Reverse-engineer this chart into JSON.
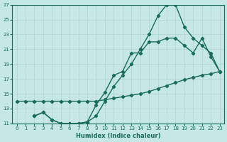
{
  "xlabel": "Humidex (Indice chaleur)",
  "xlim": [
    -0.5,
    23.5
  ],
  "ylim": [
    11,
    27
  ],
  "xticks": [
    0,
    1,
    2,
    3,
    4,
    5,
    6,
    7,
    8,
    9,
    10,
    11,
    12,
    13,
    14,
    15,
    16,
    17,
    18,
    19,
    20,
    21,
    22,
    23
  ],
  "yticks": [
    11,
    13,
    15,
    17,
    19,
    21,
    23,
    25,
    27
  ],
  "bg_color": "#c5e8e5",
  "line_color": "#1a6b5a",
  "grid_color": "#b8d8d4",
  "line1_x": [
    0,
    1,
    2,
    3,
    4,
    5,
    6,
    7,
    8,
    9,
    10,
    11,
    12,
    13,
    14,
    15,
    16,
    17,
    18,
    19,
    20,
    21,
    22,
    23
  ],
  "line1_y": [
    14.0,
    14.0,
    14.0,
    14.0,
    14.0,
    14.0,
    14.0,
    14.0,
    14.0,
    14.0,
    14.2,
    14.4,
    14.6,
    14.8,
    15.0,
    15.3,
    15.7,
    16.1,
    16.5,
    16.9,
    17.2,
    17.5,
    17.7,
    18.0
  ],
  "line2_x": [
    2,
    3,
    4,
    5,
    6,
    7,
    8,
    9,
    10,
    11,
    12,
    13,
    14,
    15,
    16,
    17,
    18,
    19,
    20,
    21,
    22,
    23
  ],
  "line2_y": [
    12.0,
    12.5,
    11.5,
    11.0,
    11.0,
    11.0,
    11.2,
    12.0,
    14.0,
    16.0,
    17.5,
    19.0,
    21.0,
    23.0,
    25.5,
    27.0,
    27.0,
    24.0,
    22.5,
    21.5,
    20.5,
    18.0
  ],
  "line3_x": [
    2,
    3,
    4,
    5,
    6,
    7,
    8,
    9,
    10,
    11,
    12,
    13,
    14,
    15,
    16,
    17,
    18,
    19,
    20,
    21,
    22,
    23
  ],
  "line3_y": [
    12.0,
    12.5,
    11.5,
    11.0,
    11.0,
    11.0,
    11.2,
    13.5,
    15.2,
    17.5,
    18.0,
    20.5,
    20.5,
    22.0,
    22.0,
    22.5,
    22.5,
    21.5,
    20.5,
    22.5,
    20.0,
    18.0
  ]
}
